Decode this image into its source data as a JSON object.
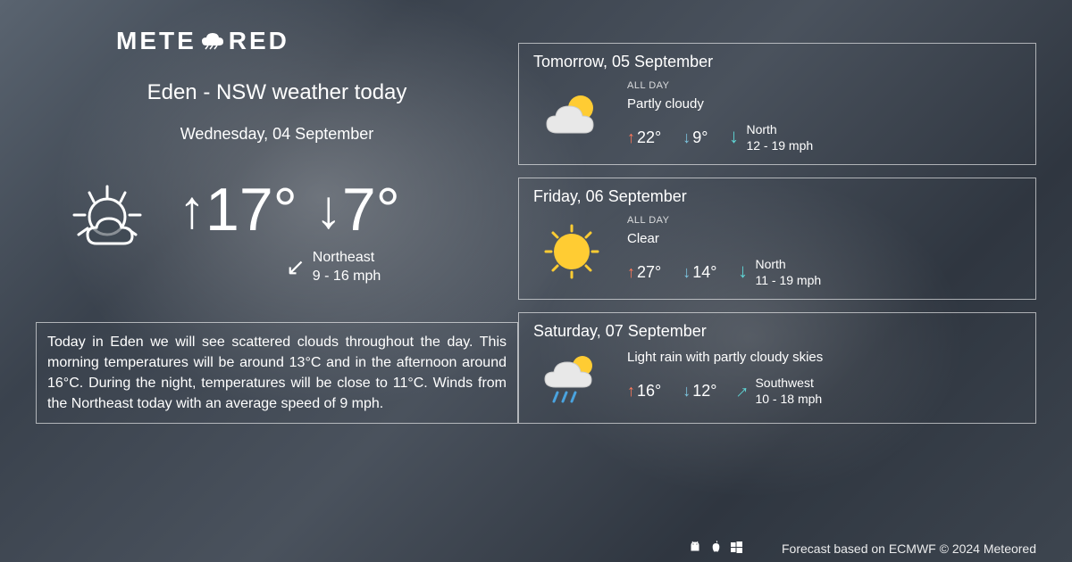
{
  "brand": {
    "name_prefix": "METE",
    "name_suffix": "RED"
  },
  "location_title": "Eden - NSW weather today",
  "today": {
    "date_label": "Wednesday, 04 September",
    "high": "17°",
    "low": "7°",
    "wind_dir": "Northeast",
    "wind_speed": "9 - 16 mph",
    "summary": "Today in Eden we will see scattered clouds throughout the day. This morning temperatures will be around 13°C and in the afternoon around 16°C. During the night, temperatures will be close to 11°C. Winds from the Northeast today with an average speed of 9 mph."
  },
  "forecast": [
    {
      "date_label": "Tomorrow, 05 September",
      "period": "ALL DAY",
      "condition": "Partly cloudy",
      "icon": "partly-cloudy",
      "high": "22°",
      "low": "9°",
      "wind_dir": "North",
      "wind_speed": "12 - 19 mph",
      "wind_arrow_rotation": 180
    },
    {
      "date_label": "Friday, 06 September",
      "period": "ALL DAY",
      "condition": "Clear",
      "icon": "clear",
      "high": "27°",
      "low": "14°",
      "wind_dir": "North",
      "wind_speed": "11 - 19 mph",
      "wind_arrow_rotation": 180
    },
    {
      "date_label": "Saturday, 07 September",
      "period": "",
      "condition": "Light rain with partly cloudy skies",
      "icon": "rain-partly",
      "high": "16°",
      "low": "12°",
      "wind_dir": "Southwest",
      "wind_speed": "10 - 18 mph",
      "wind_arrow_rotation": 45
    }
  ],
  "footer": {
    "attribution": "Forecast based on ECMWF © 2024 Meteored"
  },
  "colors": {
    "high_temp": "#ff7a5c",
    "low_temp": "#7ec8e3",
    "wind_accent": "#5fd4d4",
    "text": "#ffffff",
    "border": "rgba(255,255,255,0.6)"
  }
}
